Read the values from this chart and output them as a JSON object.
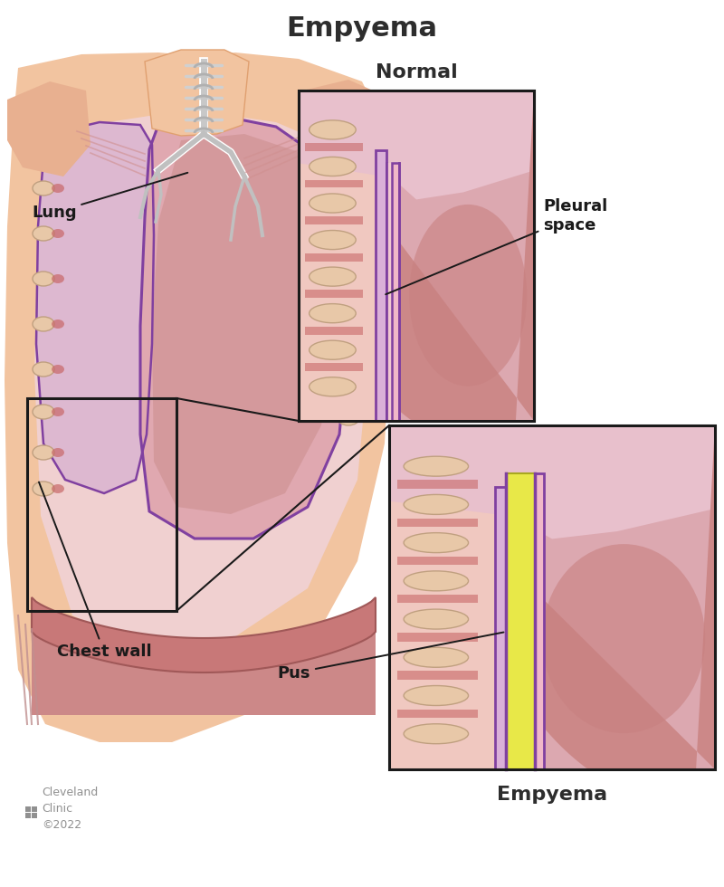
{
  "title": "Empyema",
  "title_fontsize": 22,
  "title_fontweight": "bold",
  "title_color": "#2d2d2d",
  "subtitle_normal": "Normal",
  "subtitle_empyema": "Empyema",
  "label_lung": "Lung",
  "label_chest_wall": "Chest wall",
  "label_pleural_space": "Pleural\nspace",
  "label_pus": "Pus",
  "bg_color": "#ffffff",
  "skin_color": "#f2c4a0",
  "skin_dark": "#e0a070",
  "chest_wall_color": "#f0c8c0",
  "chest_interior_color": "#e8b8b8",
  "lung_outer_color": "#d4909a",
  "lung_inner_color": "#c07878",
  "lung_surface_color": "#c88888",
  "pleura_fill": "#dab0d8",
  "pleura_outline": "#8040a0",
  "pleura_pink": "#f0b8c8",
  "rib_fill": "#e8c8a8",
  "rib_muscle": "#c86868",
  "rib_outline": "#c0a080",
  "diaphragm_color": "#c87878",
  "pus_color": "#e8e848",
  "pus_outline": "#a8a820",
  "inset_bg": "#f4c8c8",
  "box_color": "#1a1a1a",
  "line_color": "#1a1a1a",
  "label_fontsize": 13,
  "subtitle_fontsize": 16,
  "subtitle_fontweight": "bold",
  "cleveland_color": "#909090"
}
